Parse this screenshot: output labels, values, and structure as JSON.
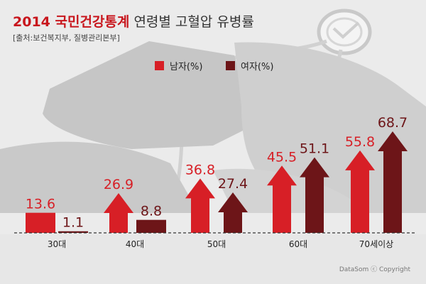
{
  "header": {
    "title_red": "2014 국민건강통계",
    "title_rest": "연령별 고혈압 유병률",
    "source": "[출처:보건복지부, 질병관리본부]"
  },
  "colors": {
    "male": "#d71f26",
    "female": "#6d1518",
    "background": "#ebebeb"
  },
  "chart_data": {
    "type": "bar",
    "title": "2014 국민건강통계 연령별 고혈압 유병률",
    "categories": [
      "30대",
      "40대",
      "50대",
      "60대",
      "70세이상"
    ],
    "series": [
      {
        "name": "남자(%)",
        "color": "#d71f26",
        "values": [
          13.6,
          26.9,
          36.8,
          45.5,
          55.8
        ]
      },
      {
        "name": "여자(%)",
        "color": "#6d1518",
        "values": [
          1.1,
          8.8,
          27.4,
          51.1,
          68.7
        ]
      }
    ],
    "ylim": [
      0,
      68.7
    ],
    "grid": false,
    "legend_position": "top-center"
  },
  "footer": {
    "copyright": "DataSom ⓒ Copyright"
  }
}
